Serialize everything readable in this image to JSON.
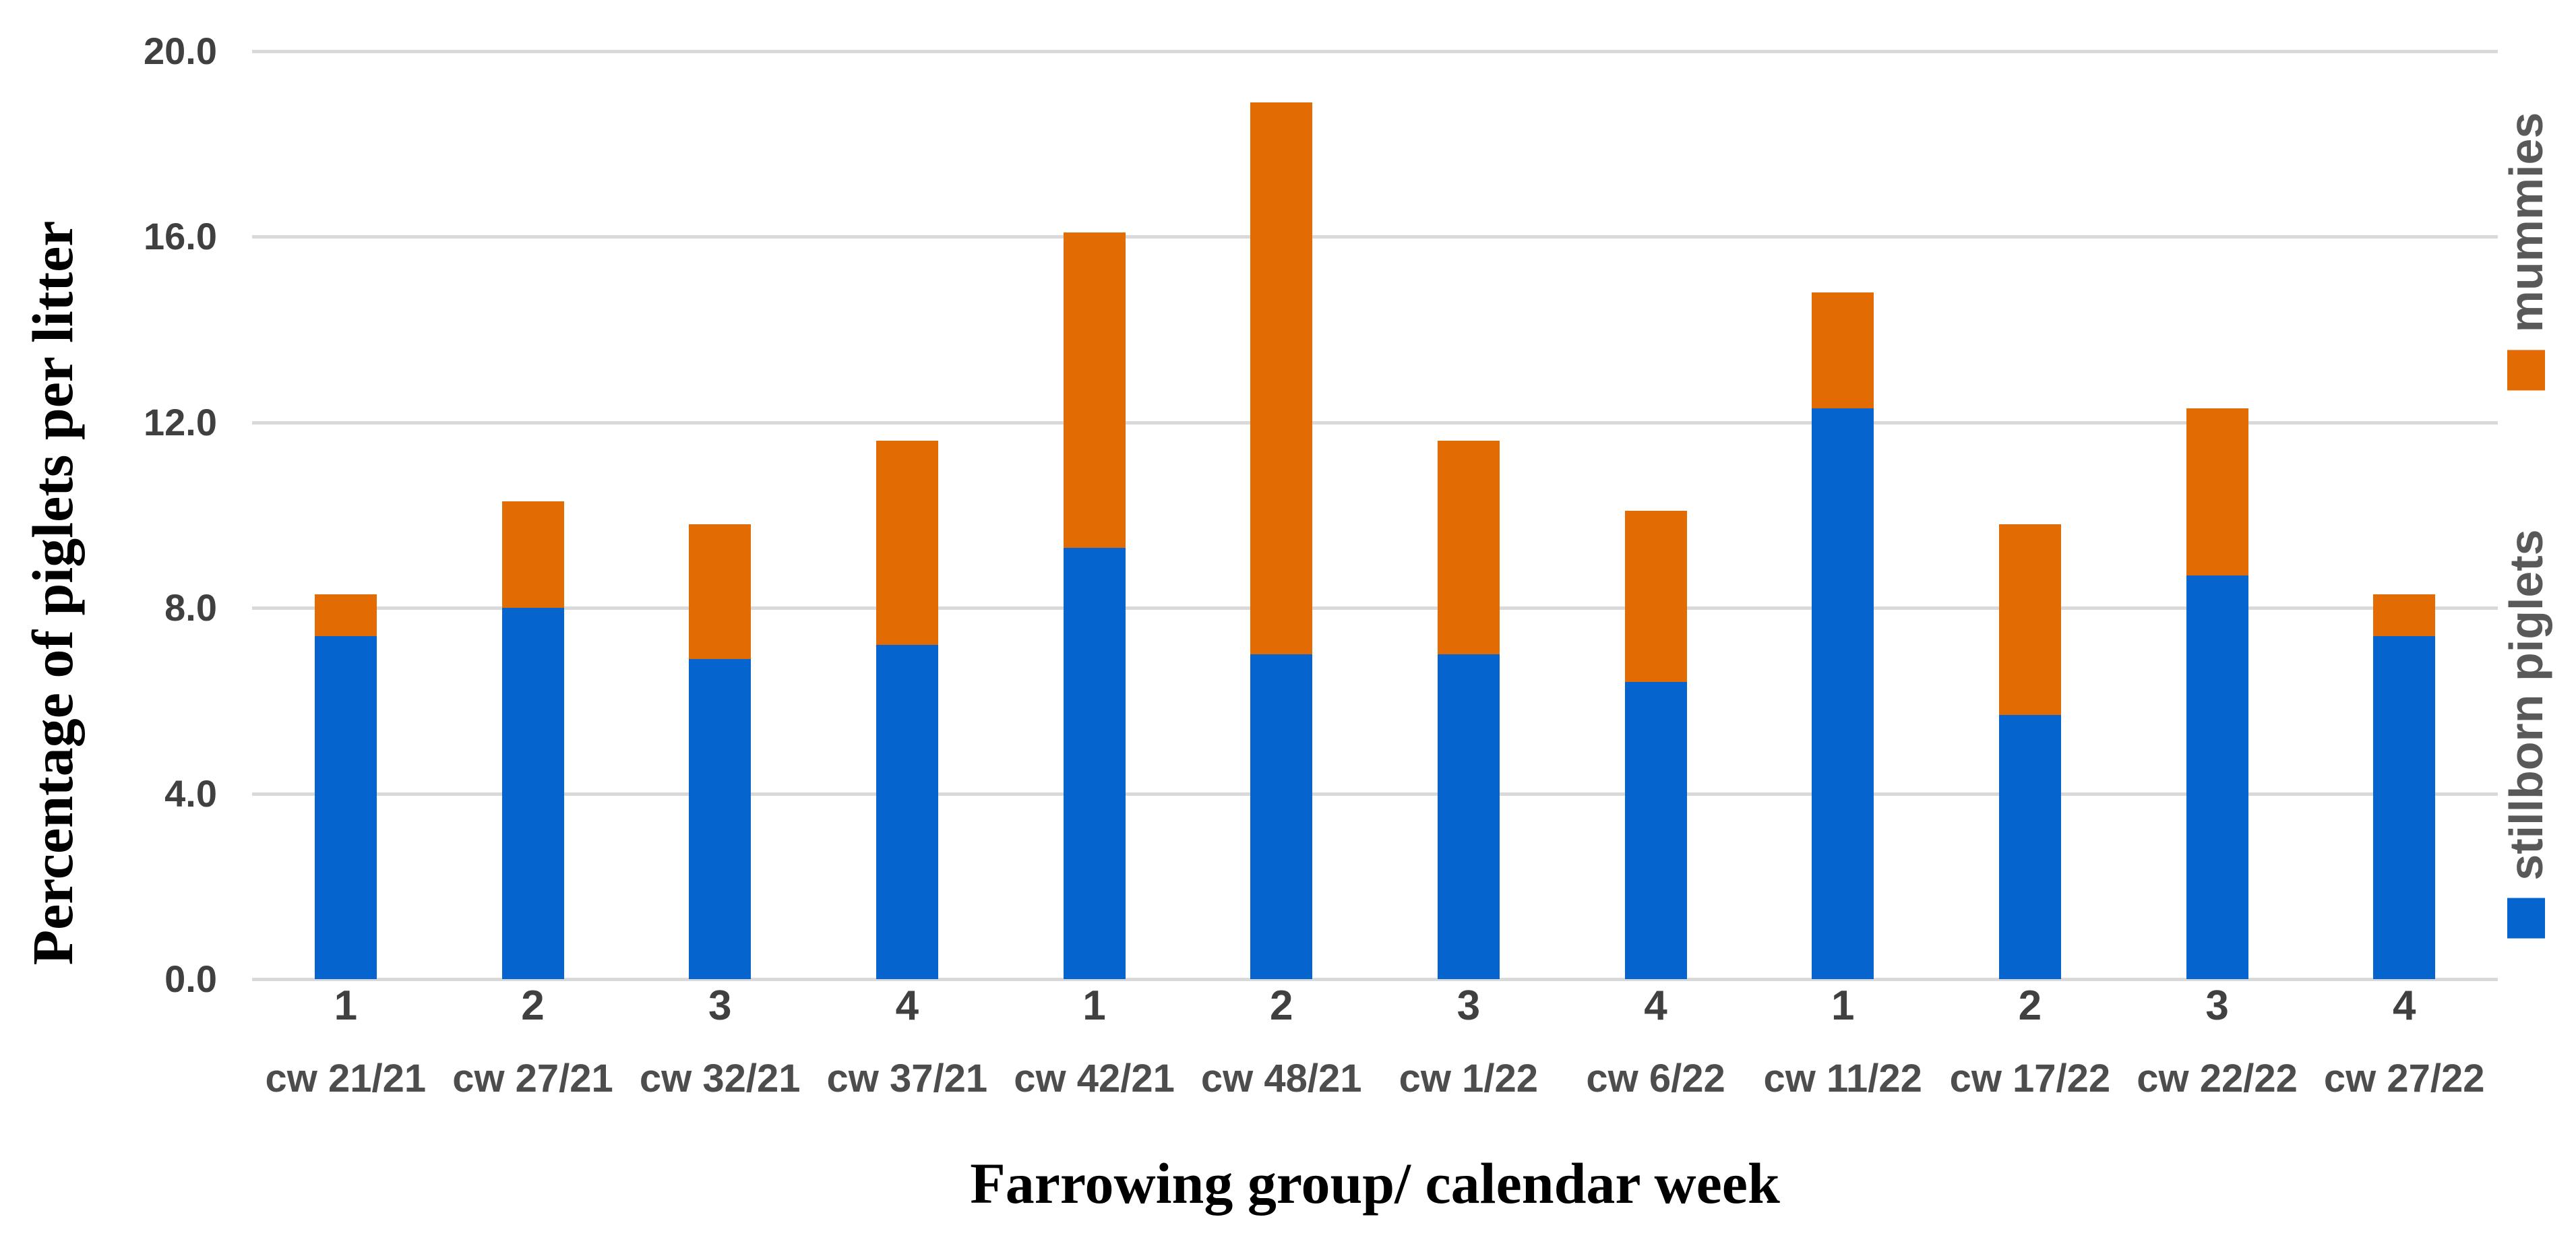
{
  "chart_data": {
    "type": "bar",
    "stacked": true,
    "xlabel": "Farrowing group/ calendar week",
    "ylabel": "Percentage of piglets per litter",
    "ylim": [
      0,
      20
    ],
    "yticks": [
      {
        "value": 0,
        "label": "0.0"
      },
      {
        "value": 4,
        "label": "4.0"
      },
      {
        "value": 8,
        "label": "8.0"
      },
      {
        "value": 12,
        "label": "12.0"
      },
      {
        "value": 16,
        "label": "16.0"
      },
      {
        "value": 20,
        "label": "20.0"
      }
    ],
    "grid": true,
    "gridline_color": "#d9d9d9",
    "categories_farrowing_group": [
      "1",
      "2",
      "3",
      "4",
      "1",
      "2",
      "3",
      "4",
      "1",
      "2",
      "3",
      "4"
    ],
    "categories_calendar_week": [
      "cw 21/21",
      "cw 27/21",
      "cw 32/21",
      "cw 37/21",
      "cw 42/21",
      "cw 48/21",
      "cw 1/22",
      "cw 6/22",
      "cw 11/22",
      "cw 17/22",
      "cw 22/22",
      "cw 27/22"
    ],
    "series": [
      {
        "name": "stillborn piglets",
        "color": "#0564cd",
        "values": [
          7.4,
          8.0,
          6.9,
          7.2,
          9.3,
          7.0,
          7.0,
          6.4,
          12.3,
          5.7,
          8.7,
          7.4
        ]
      },
      {
        "name": "mummies",
        "color": "#e26b04",
        "values": [
          0.9,
          2.3,
          2.9,
          4.4,
          6.8,
          11.9,
          4.6,
          3.7,
          2.5,
          4.1,
          3.6,
          0.9
        ]
      }
    ],
    "totals": [
      8.3,
      10.3,
      9.8,
      11.6,
      16.1,
      18.9,
      11.6,
      10.1,
      14.8,
      9.8,
      12.3,
      8.3
    ],
    "legend_position": "right-rotated"
  },
  "legend": {
    "mummies_label": "mummies",
    "stillborn_label": "stillborn piglets"
  },
  "axes": {
    "x_title": "Farrowing group/ calendar week",
    "y_title": "Percentage of piglets per litter"
  },
  "colors": {
    "stillborn_blue": "#0564cd",
    "mummies_orange": "#e26b04",
    "gridline": "#d9d9d9",
    "tick_text": "#404040",
    "legend_text": "#595959",
    "title_text": "#000000",
    "background": "#ffffff"
  }
}
